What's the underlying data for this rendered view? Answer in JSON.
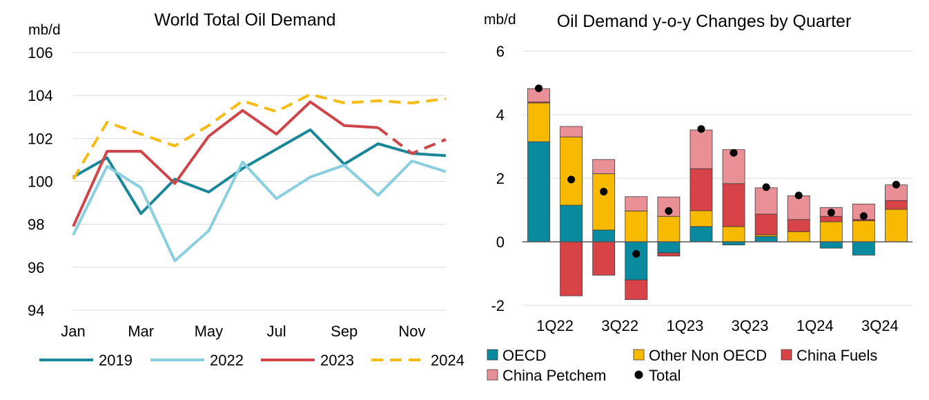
{
  "colors": {
    "y2019": "#1A8799",
    "y2022": "#8ACFE0",
    "y2023": "#D0454A",
    "y2024": "#F6BC14",
    "oecd": "#0A8A9E",
    "other_non_oecd": "#F8BA00",
    "china_fuels": "#D84348",
    "china_petchem": "#E99097",
    "total": "#000000",
    "grid": "#D9D9D9",
    "axis": "#555555"
  },
  "chart_data": [
    {
      "type": "line",
      "title": "World Total Oil Demand",
      "ylabel": "mb/d",
      "xlabel": "",
      "x": [
        "Jan",
        "Feb",
        "Mar",
        "Apr",
        "May",
        "Jun",
        "Jul",
        "Aug",
        "Sep",
        "Oct",
        "Nov",
        "Dec"
      ],
      "x_tick_labels": [
        "Jan",
        "Mar",
        "May",
        "Jul",
        "Sep",
        "Nov"
      ],
      "y_ticks": [
        94,
        96,
        98,
        100,
        102,
        104,
        106
      ],
      "ylim": [
        94,
        106
      ],
      "grid": true,
      "legend_position": "bottom",
      "series": [
        {
          "name": "2019",
          "color_key": "y2019",
          "style": "solid",
          "values": [
            100.2,
            101.1,
            98.5,
            100.1,
            99.5,
            100.6,
            101.5,
            102.4,
            100.8,
            101.75,
            101.3,
            101.2
          ]
        },
        {
          "name": "2022",
          "color_key": "y2022",
          "style": "solid",
          "values": [
            97.5,
            100.7,
            99.7,
            96.3,
            97.7,
            100.9,
            99.2,
            100.2,
            100.75,
            99.35,
            100.95,
            100.45
          ]
        },
        {
          "name": "2023",
          "color_key": "y2023",
          "style": "solid",
          "values": [
            97.9,
            101.4,
            101.4,
            99.9,
            102.1,
            103.3,
            102.2,
            103.7,
            102.6,
            102.5,
            null,
            null
          ]
        },
        {
          "name": "2023",
          "color_key": "y2023",
          "style": "dashed",
          "legend": false,
          "values": [
            null,
            null,
            null,
            null,
            null,
            null,
            null,
            null,
            null,
            102.5,
            101.3,
            101.95
          ]
        },
        {
          "name": "2024",
          "color_key": "y2024",
          "style": "dashed",
          "values": [
            100.1,
            102.75,
            102.2,
            101.65,
            102.6,
            103.75,
            103.25,
            104.05,
            103.65,
            103.75,
            103.65,
            103.85
          ]
        }
      ]
    },
    {
      "type": "bar",
      "stacked": true,
      "title": "Oil Demand y-o-y Changes by Quarter",
      "ylabel": "mb/d",
      "xlabel": "",
      "categories": [
        "1Q22",
        "2Q22",
        "3Q22",
        "4Q22",
        "1Q23",
        "2Q23",
        "3Q23",
        "4Q23",
        "1Q24",
        "2Q24",
        "3Q24",
        "4Q24"
      ],
      "x_tick_labels": [
        "1Q22",
        "3Q22",
        "1Q23",
        "3Q23",
        "1Q24",
        "3Q24"
      ],
      "y_ticks": [
        -2,
        0,
        2,
        4,
        6
      ],
      "ylim": [
        -2.2,
        6
      ],
      "grid": true,
      "legend_position": "bottom",
      "series": [
        {
          "name": "OECD",
          "color_key": "oecd",
          "values": [
            3.15,
            1.15,
            0.37,
            -1.2,
            -0.35,
            0.48,
            -0.1,
            0.17,
            0.0,
            -0.2,
            -0.42,
            0.0
          ]
        },
        {
          "name": "Other Non OECD",
          "color_key": "other_non_oecd",
          "values": [
            1.22,
            2.15,
            1.77,
            0.97,
            0.8,
            0.5,
            0.48,
            0.05,
            0.32,
            0.63,
            0.66,
            1.02
          ]
        },
        {
          "name": "China Fuels",
          "color_key": "china_fuels",
          "values": [
            0.03,
            -1.7,
            -1.05,
            -0.62,
            -0.1,
            1.32,
            1.35,
            0.65,
            0.38,
            0.17,
            0.04,
            0.28
          ]
        },
        {
          "name": "China Petchem",
          "color_key": "china_petchem",
          "values": [
            0.42,
            0.33,
            0.45,
            0.45,
            0.61,
            1.22,
            1.07,
            0.83,
            0.75,
            0.28,
            0.49,
            0.49
          ]
        }
      ],
      "total": {
        "name": "Total",
        "color_key": "total",
        "values": [
          4.83,
          1.96,
          1.58,
          -0.38,
          0.97,
          3.55,
          2.8,
          1.72,
          1.46,
          0.92,
          0.81,
          1.8
        ]
      }
    }
  ]
}
